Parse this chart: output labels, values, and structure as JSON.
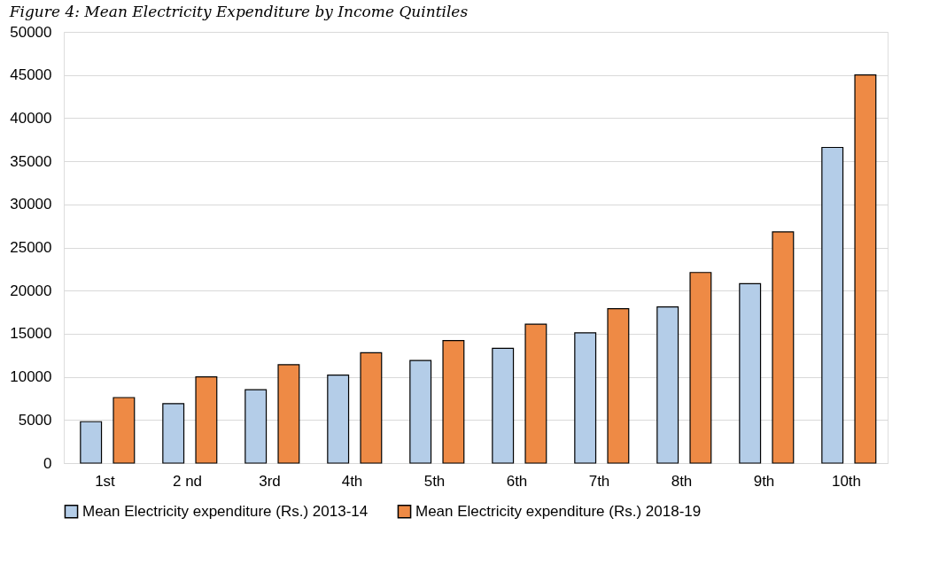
{
  "chart_data": {
    "type": "bar",
    "title": "Figure 4: Mean Electricity Expenditure by Income Quintiles",
    "categories": [
      "1st",
      "2 nd",
      "3rd",
      "4th",
      "5th",
      "6th",
      "7th",
      "8th",
      "9th",
      "10th"
    ],
    "series": [
      {
        "name": "Mean Electricity expenditure (Rs.) 2013-14",
        "color": "#b4cde8",
        "values": [
          4800,
          6900,
          8500,
          10200,
          11900,
          13300,
          15100,
          18100,
          20800,
          36600
        ]
      },
      {
        "name": "Mean Electricity expenditure (Rs.) 2018-19",
        "color": "#ee8a45",
        "values": [
          7600,
          10000,
          11400,
          12800,
          14200,
          16100,
          17900,
          22100,
          26800,
          45000
        ]
      }
    ],
    "ylim": [
      0,
      50000
    ],
    "yticks": [
      0,
      5000,
      10000,
      15000,
      20000,
      25000,
      30000,
      35000,
      40000,
      45000,
      50000
    ],
    "grid": "y",
    "legend": "bottom"
  }
}
